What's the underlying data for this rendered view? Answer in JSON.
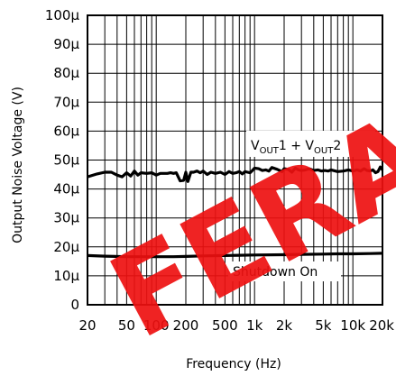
{
  "chart_data": {
    "type": "line",
    "title": "",
    "xlabel": "Frequency (Hz)",
    "ylabel": "Output Noise Voltage (V)",
    "x_scale": "log",
    "xlim": [
      20,
      20000
    ],
    "ylim": [
      0,
      100
    ],
    "grid": true,
    "x_tick_labels": [
      {
        "value": 20,
        "label": "20"
      },
      {
        "value": 50,
        "label": "50"
      },
      {
        "value": 100,
        "label": "100"
      },
      {
        "value": 200,
        "label": "200"
      },
      {
        "value": 500,
        "label": "500"
      },
      {
        "value": 1000,
        "label": "1k"
      },
      {
        "value": 2000,
        "label": "2k"
      },
      {
        "value": 5000,
        "label": "5k"
      },
      {
        "value": 10000,
        "label": "10k"
      },
      {
        "value": 20000,
        "label": "20k"
      }
    ],
    "y_tick_labels": [
      {
        "value": 0,
        "label": "0"
      },
      {
        "value": 10,
        "label": "10μ"
      },
      {
        "value": 20,
        "label": "20μ"
      },
      {
        "value": 30,
        "label": "30μ"
      },
      {
        "value": 40,
        "label": "40μ"
      },
      {
        "value": 50,
        "label": "50μ"
      },
      {
        "value": 60,
        "label": "60μ"
      },
      {
        "value": 70,
        "label": "70μ"
      },
      {
        "value": 80,
        "label": "80μ"
      },
      {
        "value": 90,
        "label": "90μ"
      },
      {
        "value": 100,
        "label": "100μ"
      }
    ],
    "series": [
      {
        "name": "VOUT1 + VOUT2",
        "x": [
          20,
          25,
          30,
          35,
          40,
          45,
          50,
          55,
          60,
          65,
          70,
          80,
          90,
          100,
          110,
          120,
          130,
          140,
          150,
          160,
          175,
          190,
          200,
          210,
          225,
          240,
          260,
          280,
          300,
          330,
          360,
          400,
          450,
          500,
          550,
          600,
          650,
          700,
          750,
          800,
          850,
          900,
          950,
          1000,
          1100,
          1200,
          1300,
          1400,
          1500,
          1700,
          1900,
          2000,
          2200,
          2400,
          2600,
          2800,
          3000,
          3300,
          3600,
          4000,
          4400,
          4800,
          5200,
          5600,
          6000,
          7000,
          8000,
          9000,
          10000,
          11000,
          12000,
          13000,
          14000,
          15000,
          16000,
          17000,
          18000,
          19000,
          20000
        ],
        "y": [
          44.2,
          45.2,
          45.8,
          45.8,
          44.8,
          44.2,
          45.6,
          44.5,
          46.2,
          44.8,
          45.6,
          45.4,
          45.6,
          44.8,
          45.4,
          45.4,
          45.4,
          45.6,
          45.4,
          45.6,
          42.8,
          43.0,
          45.8,
          42.6,
          45.8,
          45.8,
          46.2,
          45.6,
          46.2,
          45.0,
          45.8,
          45.4,
          45.8,
          45.0,
          46.0,
          45.4,
          45.6,
          46.0,
          45.2,
          46.0,
          45.8,
          45.6,
          46.4,
          47.2,
          47.0,
          46.4,
          46.6,
          46.2,
          47.4,
          46.8,
          46.0,
          47.0,
          46.8,
          45.8,
          47.2,
          46.6,
          46.4,
          46.6,
          47.0,
          46.4,
          46.6,
          46.2,
          46.4,
          46.2,
          46.6,
          46.0,
          46.2,
          46.6,
          46.2,
          46.6,
          46.2,
          47.0,
          46.4,
          46.2,
          46.6,
          45.6,
          46.0,
          47.6,
          46.6
        ],
        "label": "VOUT1 + VOUT2"
      },
      {
        "name": "Shutdown On",
        "x": [
          20,
          30,
          50,
          100,
          150,
          200,
          300,
          500,
          700,
          1000,
          2000,
          3000,
          5000,
          7000,
          10000,
          15000,
          20000
        ],
        "y": [
          17.0,
          16.8,
          16.6,
          16.6,
          16.6,
          16.7,
          16.9,
          17.0,
          17.1,
          17.2,
          17.3,
          17.4,
          17.5,
          17.6,
          17.6,
          17.7,
          17.8
        ],
        "label": "Shutdown On"
      }
    ],
    "annotations": [
      {
        "text_parts": [
          "V",
          "OUT",
          "1 + V",
          "OUT",
          "2"
        ],
        "near_series": "VOUT1 + VOUT2"
      },
      {
        "text": "Shutdown On",
        "near_series": "Shutdown On"
      }
    ],
    "watermark": "FERA",
    "colors": {
      "line": "#000000",
      "grid": "#000000",
      "watermark": "#ee1111"
    }
  }
}
